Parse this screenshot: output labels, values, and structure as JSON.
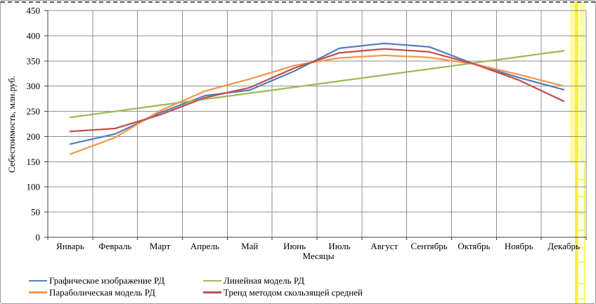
{
  "chart_data": {
    "type": "line",
    "categories": [
      "Январь",
      "Февраль",
      "Март",
      "Апрель",
      "Май",
      "Июнь",
      "Июль",
      "Август",
      "Сентябрь",
      "Октябрь",
      "Ноябрь",
      "Декабрь"
    ],
    "series": [
      {
        "name": "Графическое изображение РД",
        "color": "#4F81BD",
        "values": [
          185,
          205,
          247,
          281,
          292,
          330,
          375,
          385,
          378,
          344,
          317,
          293
        ]
      },
      {
        "name": "Параболическая модель РД",
        "color": "#F79646",
        "values": [
          165,
          198,
          251,
          290,
          314,
          341,
          356,
          361,
          357,
          344,
          323,
          300
        ]
      },
      {
        "name": "Линейная модель РД",
        "color": "#9BBB59",
        "values": [
          238,
          250,
          262,
          274,
          286,
          298,
          310,
          322,
          334,
          346,
          358,
          370
        ]
      },
      {
        "name": "Тренд методом скользящей средней",
        "color": "#C0504D",
        "values": [
          210,
          216,
          243,
          277,
          297,
          336,
          366,
          374,
          368,
          344,
          312,
          270
        ]
      }
    ],
    "xlabel": "Месяцы",
    "ylabel": "Себестоимость, млн.руб.",
    "ylim": [
      0,
      450
    ],
    "yticks": [
      0,
      50,
      100,
      150,
      200,
      250,
      300,
      350,
      400,
      450
    ],
    "grid": true,
    "legend_position": "bottom"
  },
  "decorations": {
    "highlight_column_light": "#FFFD9E",
    "highlight_column_bright": "#F8EE3E",
    "gridline_color": "#8f8f8f",
    "axis_color": "#404040"
  }
}
